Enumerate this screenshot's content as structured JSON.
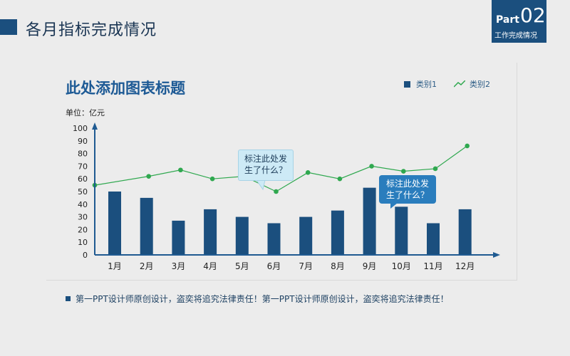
{
  "header": {
    "title": "各月指标完成情况",
    "part_word": "Part",
    "part_num": "02",
    "part_sub": "工作完成情况"
  },
  "chart_data": {
    "type": "bar",
    "title": "此处添加图表标题",
    "unit": "单位：亿元",
    "categories": [
      "1月",
      "2月",
      "3月",
      "4月",
      "5月",
      "6月",
      "7月",
      "8月",
      "9月",
      "10月",
      "11月",
      "12月"
    ],
    "series": [
      {
        "name": "类别1",
        "type": "bar",
        "color": "#1b4f7e",
        "values": [
          50,
          45,
          27,
          36,
          30,
          25,
          30,
          35,
          53,
          38,
          25,
          36
        ]
      },
      {
        "name": "类别2",
        "type": "line",
        "color": "#2fa84f",
        "values": [
          55,
          62,
          67,
          60,
          62,
          50,
          65,
          60,
          70,
          66,
          68,
          86
        ]
      }
    ],
    "ylim": [
      0,
      100
    ],
    "yticks": [
      0,
      10,
      20,
      30,
      40,
      50,
      60,
      70,
      80,
      90,
      100
    ],
    "legend_position": "top-right",
    "grid": false
  },
  "callouts": [
    {
      "text": "标注此处发生了什么？"
    },
    {
      "text": "标注此处发生了什么？"
    }
  ],
  "footer": {
    "text": "第一PPT设计师原创设计，盗奕将追究法律责任！第一PPT设计师原创设计，盗奕将追究法律责任！"
  }
}
